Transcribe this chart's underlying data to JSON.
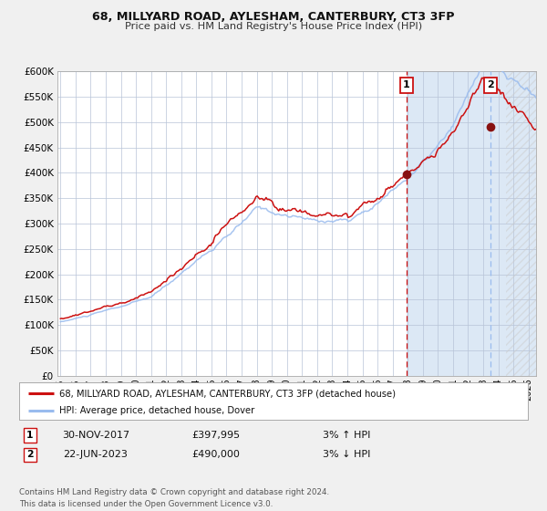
{
  "title": "68, MILLYARD ROAD, AYLESHAM, CANTERBURY, CT3 3FP",
  "subtitle": "Price paid vs. HM Land Registry's House Price Index (HPI)",
  "bg_color": "#f0f0f0",
  "plot_bg_color": "#ffffff",
  "shaded_region_color": "#dce8f5",
  "grid_color": "#b8c4d8",
  "xmin": 1994.8,
  "xmax": 2026.5,
  "ymin": 0,
  "ymax": 600000,
  "yticks": [
    0,
    50000,
    100000,
    150000,
    200000,
    250000,
    300000,
    350000,
    400000,
    450000,
    500000,
    550000,
    600000
  ],
  "ytick_labels": [
    "£0",
    "£50K",
    "£100K",
    "£150K",
    "£200K",
    "£250K",
    "£300K",
    "£350K",
    "£400K",
    "£450K",
    "£500K",
    "£550K",
    "£600K"
  ],
  "xtick_years": [
    1995,
    1996,
    1997,
    1998,
    1999,
    2000,
    2001,
    2002,
    2003,
    2004,
    2005,
    2006,
    2007,
    2008,
    2009,
    2010,
    2011,
    2012,
    2013,
    2014,
    2015,
    2016,
    2017,
    2018,
    2019,
    2020,
    2021,
    2022,
    2023,
    2024,
    2025,
    2026
  ],
  "marker1_x": 2017.92,
  "marker1_y": 397995,
  "marker2_x": 2023.47,
  "marker2_y": 490000,
  "vline1_x": 2017.92,
  "vline2_x": 2023.47,
  "legend_label_red": "68, MILLYARD ROAD, AYLESHAM, CANTERBURY, CT3 3FP (detached house)",
  "legend_label_blue": "HPI: Average price, detached house, Dover",
  "table_row1_num": "1",
  "table_row1_date": "30-NOV-2017",
  "table_row1_price": "£397,995",
  "table_row1_hpi": "3% ↑ HPI",
  "table_row2_num": "2",
  "table_row2_date": "22-JUN-2023",
  "table_row2_price": "£490,000",
  "table_row2_hpi": "3% ↓ HPI",
  "footer_text": "Contains HM Land Registry data © Crown copyright and database right 2024.\nThis data is licensed under the Open Government Licence v3.0.",
  "red_line_color": "#cc1111",
  "blue_line_color": "#99bbee",
  "marker_color": "#881111",
  "shaded_start": 2017.92,
  "shaded_end": 2026.5,
  "hatch_start": 2024.5
}
